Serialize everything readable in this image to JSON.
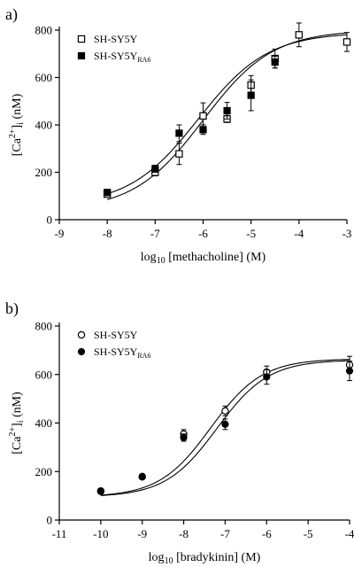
{
  "chart_data": [
    {
      "type": "scatter",
      "panel_label": "a)",
      "xlabel": "log10 [methacholine] (M)",
      "xlabel_parts": {
        "pre": "log",
        "sub": "10",
        "post": " [methacholine] (M)"
      },
      "ylabel_parts": {
        "a": "[Ca",
        "sup": "2+",
        "b": "]",
        "sub": "i",
        "c": " (nM)"
      },
      "xlim": [
        -9,
        -3
      ],
      "ylim": [
        0,
        800
      ],
      "xticks": [
        -9,
        -8,
        -7,
        -6,
        -5,
        -4,
        -3
      ],
      "yticks": [
        0,
        200,
        400,
        600,
        800
      ],
      "legend_position": "top-left",
      "series": [
        {
          "name": "SH-SY5Y",
          "name_parts": {
            "main": "SH-SY5Y",
            "sub": ""
          },
          "marker": "open-square",
          "x": [
            -8,
            -7,
            -6.5,
            -6,
            -5.5,
            -5,
            -4.5,
            -4,
            -3
          ],
          "y": [
            108,
            200,
            278,
            438,
            425,
            568,
            680,
            780,
            750
          ],
          "err": [
            10,
            15,
            45,
            55,
            15,
            40,
            40,
            50,
            40
          ],
          "curve": {
            "bottom": 40,
            "top": 800,
            "ec50_log": -6.0,
            "hill": 0.6
          }
        },
        {
          "name": "SH-SY5YRA6",
          "name_parts": {
            "main": "SH-SY5Y",
            "sub": "RA6"
          },
          "marker": "filled-square",
          "x": [
            -8,
            -7,
            -6.5,
            -6,
            -5.5,
            -5,
            -4.5
          ],
          "y": [
            115,
            215,
            365,
            380,
            460,
            525,
            665
          ],
          "err": [
            10,
            15,
            35,
            20,
            35,
            65,
            25
          ],
          "curve": {
            "bottom": 60,
            "top": 790,
            "ec50_log": -6.1,
            "hill": 0.6
          }
        }
      ]
    },
    {
      "type": "scatter",
      "panel_label": "b)",
      "xlabel": "log10 [bradykinin] (M)",
      "xlabel_parts": {
        "pre": "log",
        "sub": "10",
        "post": " [bradykinin] (M)"
      },
      "ylabel_parts": {
        "a": "[Ca",
        "sup": "2+",
        "b": "]",
        "sub": "i",
        "c": " (nM)"
      },
      "xlim": [
        -11,
        -4
      ],
      "ylim": [
        0,
        800
      ],
      "xticks": [
        -11,
        -10,
        -9,
        -8,
        -7,
        -6,
        -5,
        -4
      ],
      "yticks": [
        0,
        200,
        400,
        600,
        800
      ],
      "legend_position": "top-left",
      "series": [
        {
          "name": "SH-SY5Y",
          "name_parts": {
            "main": "SH-SY5Y",
            "sub": ""
          },
          "marker": "open-circle",
          "x": [
            -10,
            -9,
            -8,
            -7,
            -6,
            -4
          ],
          "y": [
            120,
            178,
            355,
            450,
            610,
            640
          ],
          "err": [
            8,
            8,
            18,
            20,
            25,
            35
          ],
          "curve": {
            "bottom": 95,
            "top": 665,
            "ec50_log": -7.35,
            "hill": 0.7
          }
        },
        {
          "name": "SH-SY5YRA6",
          "name_parts": {
            "main": "SH-SY5Y",
            "sub": "RA6"
          },
          "marker": "filled-circle",
          "x": [
            -10,
            -9,
            -8,
            -7,
            -6,
            -4
          ],
          "y": [
            118,
            180,
            340,
            395,
            590,
            615
          ],
          "err": [
            8,
            8,
            15,
            22,
            30,
            40
          ],
          "curve": {
            "bottom": 95,
            "top": 660,
            "ec50_log": -7.2,
            "hill": 0.7
          }
        }
      ]
    }
  ]
}
